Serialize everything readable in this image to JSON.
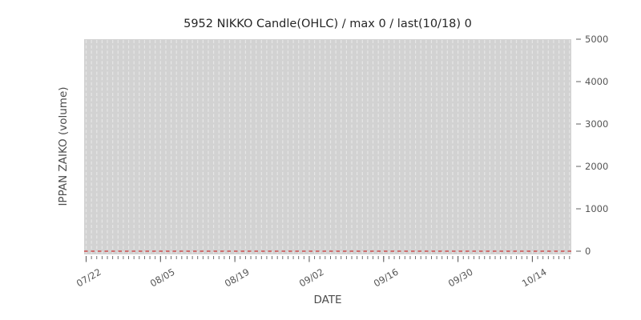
{
  "figure": {
    "background": "#ffffff",
    "title": "5952 NIKKO Candle(OHLC) / max 0 / last(10/18) 0",
    "xlabel": "DATE",
    "ylabel": "IPPAN ZAIKO (volume)"
  },
  "chart_data": {
    "type": "line",
    "title": "5952 NIKKO Candle(OHLC) / max 0 / last(10/18) 0",
    "xlabel": "DATE",
    "ylabel": "IPPAN ZAIKO (volume)",
    "x_tick_labels": [
      "07/22",
      "08/05",
      "08/19",
      "09/02",
      "09/16",
      "09/30",
      "10/14"
    ],
    "x_major_day_indices": [
      0,
      14,
      28,
      42,
      56,
      70,
      84
    ],
    "x_total_days": 92,
    "x_tick_interval_days": 14,
    "y_ticks": [
      0,
      1000,
      2000,
      3000,
      4000,
      5000
    ],
    "y_tick_labels": [
      "0",
      "1000",
      "2000",
      "3000",
      "4000",
      "5000"
    ],
    "ylim": [
      -130,
      5000
    ],
    "y_axis_labels_side": "right",
    "series": [
      {
        "name": "IPPAN ZAIKO (volume)",
        "description": "constant zero volume line from 07/22 through last point 10/18",
        "constant_value": 0,
        "max": 0,
        "last_date": "10/18",
        "last_value": 0,
        "color": "#cc4d4d",
        "linestyle": "dashed"
      }
    ],
    "grid": {
      "axis": "x",
      "interval": "daily",
      "linestyle": "dashed",
      "color": "#e6e6e6"
    },
    "plot_background": "#d2d2d2",
    "tick_mark_color": "#606060",
    "tick_label_color": "#555555",
    "axis_label_color": "#4c4c4c",
    "title_color": "#262626",
    "legend": "none"
  }
}
